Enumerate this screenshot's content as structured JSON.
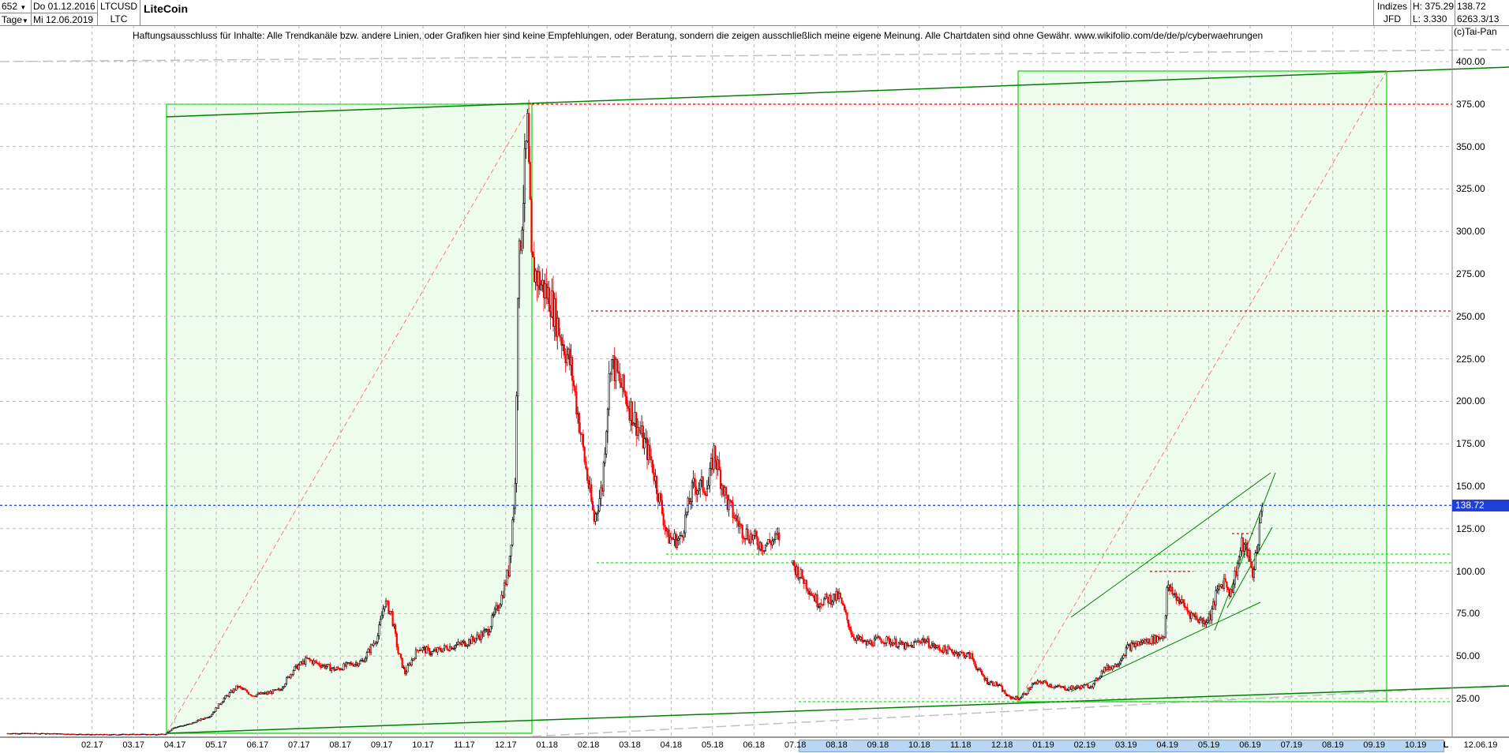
{
  "header": {
    "bars": "652",
    "period": "Tage",
    "date_from": "Do 01.12.2016",
    "date_to": "Mi 12.06.2019",
    "symbol": "LTCUSD",
    "symbol_short": "LTC",
    "title": "LiteCoin",
    "category": "Indizes",
    "source": "JFD",
    "high": "H: 375.29",
    "low": "L: 3.330",
    "last": "138.72",
    "volume": "6263.3/13"
  },
  "disclaimer": "Haftungsausschluss für Inhalte: Alle Trendkanäle bzw. andere Linien, oder Grafiken hier sind keine Empfehlungen, oder Beratung, sondern die zeigen ausschließlich meine eigene Meinung. Alle Chartdaten sind ohne Gewähr.  www.wikifolio.com/de/de/p/cyberwaehrungen",
  "copyright": "(c)Tai-Pan",
  "colors": {
    "up": "#000000",
    "down": "#ff0000",
    "box": "#eefcee",
    "box_border": "#33dd33",
    "trend": "#008000",
    "last_price": "#1f3fd6"
  },
  "price_axis": [
    "400.00",
    "375.00",
    "350.00",
    "325.00",
    "300.00",
    "275.00",
    "250.00",
    "225.00",
    "200.00",
    "175.00",
    "150.00",
    "125.00",
    "100.00",
    "75.00",
    "50.00",
    "25.00"
  ],
  "last_price_label": "138.72",
  "time_axis": [
    "02.17",
    "03.17",
    "04.17",
    "05.17",
    "06.17",
    "07.17",
    "08.17",
    "09.17",
    "10.17",
    "11.17",
    "12.17",
    "01.18",
    "02.18",
    "03.18",
    "04.18",
    "05.18",
    "06.18",
    "07.18",
    "08.18",
    "09.18",
    "10.18",
    "11.18",
    "12.18",
    "01.19",
    "02.19",
    "03.19",
    "04.19",
    "05.19",
    "06.19",
    "07.19",
    "08.19",
    "09.19",
    "10.19"
  ],
  "time_axis_end": "12.06.19",
  "time_axis_mode": "L",
  "chart_data": {
    "type": "candlestick",
    "ylim": [
      0,
      400
    ],
    "closes": [
      [
        "2016-12-01",
        4.5
      ],
      [
        "2017-01-01",
        4.4
      ],
      [
        "2017-02-01",
        3.8
      ],
      [
        "2017-03-01",
        3.9
      ],
      [
        "2017-03-28",
        4.0
      ],
      [
        "2017-04-03",
        8
      ],
      [
        "2017-04-15",
        10
      ],
      [
        "2017-04-30",
        15
      ],
      [
        "2017-05-10",
        25
      ],
      [
        "2017-05-20",
        32
      ],
      [
        "2017-05-31",
        27
      ],
      [
        "2017-06-10",
        28
      ],
      [
        "2017-06-20",
        30
      ],
      [
        "2017-06-30",
        42
      ],
      [
        "2017-07-10",
        48
      ],
      [
        "2017-07-20",
        45
      ],
      [
        "2017-07-31",
        42
      ],
      [
        "2017-08-10",
        45
      ],
      [
        "2017-08-20",
        47
      ],
      [
        "2017-08-31",
        62
      ],
      [
        "2017-09-05",
        82
      ],
      [
        "2017-09-10",
        75
      ],
      [
        "2017-09-15",
        52
      ],
      [
        "2017-09-20",
        40
      ],
      [
        "2017-09-30",
        55
      ],
      [
        "2017-10-10",
        52
      ],
      [
        "2017-10-20",
        55
      ],
      [
        "2017-10-31",
        57
      ],
      [
        "2017-11-10",
        60
      ],
      [
        "2017-11-20",
        65
      ],
      [
        "2017-11-30",
        85
      ],
      [
        "2017-12-05",
        100
      ],
      [
        "2017-12-10",
        150
      ],
      [
        "2017-12-12",
        270
      ],
      [
        "2017-12-15",
        310
      ],
      [
        "2017-12-19",
        360
      ],
      [
        "2017-12-22",
        280
      ],
      [
        "2017-12-28",
        270
      ],
      [
        "2018-01-05",
        260
      ],
      [
        "2018-01-12",
        240
      ],
      [
        "2018-01-20",
        220
      ],
      [
        "2018-01-31",
        160
      ],
      [
        "2018-02-06",
        130
      ],
      [
        "2018-02-12",
        150
      ],
      [
        "2018-02-18",
        225
      ],
      [
        "2018-02-28",
        205
      ],
      [
        "2018-03-10",
        185
      ],
      [
        "2018-03-20",
        165
      ],
      [
        "2018-04-01",
        120
      ],
      [
        "2018-04-10",
        118
      ],
      [
        "2018-04-20",
        150
      ],
      [
        "2018-05-01",
        150
      ],
      [
        "2018-05-05",
        170
      ],
      [
        "2018-05-15",
        140
      ],
      [
        "2018-05-25",
        125
      ],
      [
        "2018-06-10",
        115
      ],
      [
        "2018-06-22",
        120
      ],
      [
        "2018-07-01",
        105
      ],
      [
        "2018-07-10",
        95
      ],
      [
        "2018-07-20",
        82
      ],
      [
        "2018-08-05",
        85
      ],
      [
        "2018-08-15",
        62
      ],
      [
        "2018-08-25",
        57
      ],
      [
        "2018-09-05",
        60
      ],
      [
        "2018-09-15",
        58
      ],
      [
        "2018-09-25",
        55
      ],
      [
        "2018-10-05",
        60
      ],
      [
        "2018-10-15",
        55
      ],
      [
        "2018-10-31",
        52
      ],
      [
        "2018-11-10",
        50
      ],
      [
        "2018-11-15",
        42
      ],
      [
        "2018-11-22",
        35
      ],
      [
        "2018-11-30",
        33
      ],
      [
        "2018-12-07",
        26
      ],
      [
        "2018-12-15",
        25
      ],
      [
        "2018-12-20",
        28
      ],
      [
        "2018-12-25",
        33
      ],
      [
        "2019-01-01",
        35
      ],
      [
        "2019-01-10",
        32
      ],
      [
        "2019-01-20",
        31
      ],
      [
        "2019-01-31",
        32
      ],
      [
        "2019-02-08",
        33
      ],
      [
        "2019-02-15",
        42
      ],
      [
        "2019-02-25",
        45
      ],
      [
        "2019-03-05",
        55
      ],
      [
        "2019-03-15",
        58
      ],
      [
        "2019-03-25",
        60
      ],
      [
        "2019-04-01",
        62
      ],
      [
        "2019-04-03",
        90
      ],
      [
        "2019-04-10",
        85
      ],
      [
        "2019-04-20",
        75
      ],
      [
        "2019-04-30",
        70
      ],
      [
        "2019-05-05",
        74
      ],
      [
        "2019-05-10",
        88
      ],
      [
        "2019-05-15",
        95
      ],
      [
        "2019-05-20",
        87
      ],
      [
        "2019-05-28",
        115
      ],
      [
        "2019-06-01",
        112
      ],
      [
        "2019-06-05",
        98
      ],
      [
        "2019-06-10",
        125
      ],
      [
        "2019-06-12",
        138.72
      ]
    ],
    "high": 375.29,
    "low": 3.33,
    "last": 138.72,
    "levels": [
      375,
      253,
      110,
      105,
      100,
      122,
      23
    ],
    "grid": true
  }
}
